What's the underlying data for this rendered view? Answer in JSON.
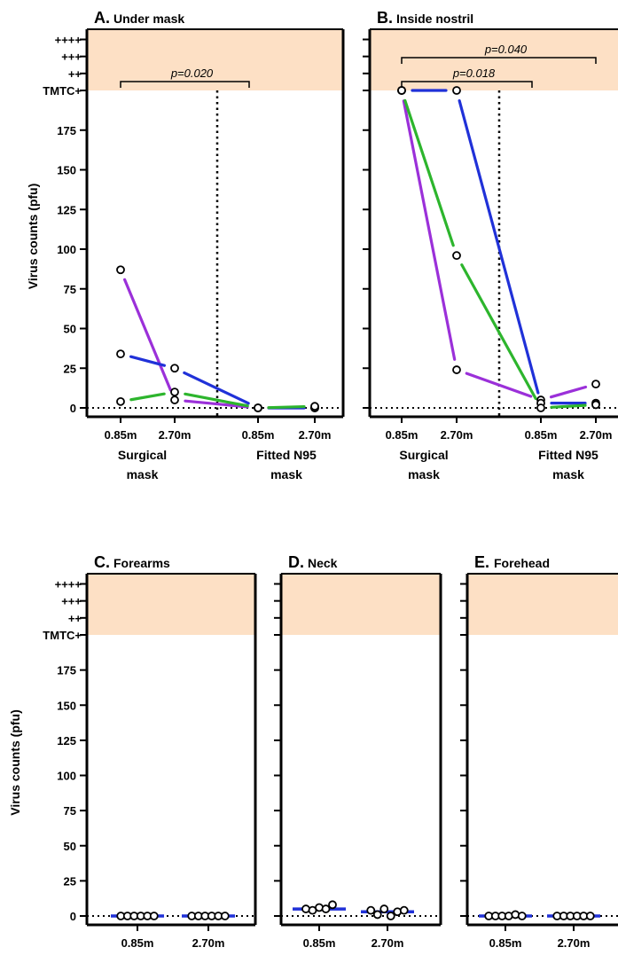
{
  "figure": {
    "shade_color": "#fde0c5",
    "ylabel": "Virus counts (pfu)",
    "y_ticks": [
      0,
      25,
      50,
      75,
      100,
      125,
      150,
      175
    ],
    "y_cat_labels": [
      "TMTC+",
      "++",
      "+++",
      "++++"
    ],
    "series_colors": [
      "#9b30d9",
      "#2031d8",
      "#2db52d"
    ]
  },
  "chart_data": [
    {
      "id": "A",
      "type": "line",
      "letter": "A.",
      "title": "Under mask",
      "x_labels": [
        "0.85m",
        "2.70m",
        "0.85m",
        "2.70m"
      ],
      "groups": [
        {
          "label": [
            "Surgical",
            "mask"
          ],
          "span": [
            0,
            1
          ]
        },
        {
          "label": [
            "Fitted N95",
            "mask"
          ],
          "span": [
            2,
            3
          ]
        }
      ],
      "ylim": [
        0,
        200
      ],
      "points": [
        {
          "x": 0,
          "y": 87
        },
        {
          "x": 0,
          "y": 34
        },
        {
          "x": 0,
          "y": 4
        },
        {
          "x": 1,
          "y": 25
        },
        {
          "x": 1,
          "y": 10
        },
        {
          "x": 1,
          "y": 5
        },
        {
          "x": 2,
          "y": 0
        },
        {
          "x": 2,
          "y": 0
        },
        {
          "x": 2,
          "y": 0
        },
        {
          "x": 3,
          "y": 0
        },
        {
          "x": 3,
          "y": 0
        },
        {
          "x": 3,
          "y": 1
        }
      ],
      "series": [
        {
          "color": "#9b30d9",
          "values": [
            87,
            5,
            0,
            0
          ]
        },
        {
          "color": "#2031d8",
          "values": [
            34,
            25,
            0,
            0
          ]
        },
        {
          "color": "#2db52d",
          "values": [
            4,
            10,
            0,
            1
          ]
        }
      ],
      "divider_between": [
        1,
        2
      ],
      "pvalues": [
        {
          "text": "p=0.020",
          "from": 0,
          "to": 2,
          "level": 0
        }
      ]
    },
    {
      "id": "B",
      "type": "line",
      "letter": "B.",
      "title": "Inside nostril",
      "x_labels": [
        "0.85m",
        "2.70m",
        "0.85m",
        "2.70m"
      ],
      "groups": [
        {
          "label": [
            "Surgical",
            "mask"
          ],
          "span": [
            0,
            1
          ]
        },
        {
          "label": [
            "Fitted N95",
            "mask"
          ],
          "span": [
            2,
            3
          ]
        }
      ],
      "ylim": [
        0,
        200
      ],
      "points": [
        {
          "x": 0,
          "y": "TMTC+"
        },
        {
          "x": 0,
          "y": "TMTC+"
        },
        {
          "x": 0,
          "y": "TMTC+"
        },
        {
          "x": 1,
          "y": "TMTC+"
        },
        {
          "x": 1,
          "y": 96
        },
        {
          "x": 1,
          "y": 24
        },
        {
          "x": 2,
          "y": 5
        },
        {
          "x": 2,
          "y": 3
        },
        {
          "x": 2,
          "y": 0
        },
        {
          "x": 3,
          "y": 15
        },
        {
          "x": 3,
          "y": 3
        },
        {
          "x": 3,
          "y": 2
        }
      ],
      "series": [
        {
          "color": "#9b30d9",
          "values": [
            200,
            24,
            5,
            15
          ]
        },
        {
          "color": "#2031d8",
          "values": [
            200,
            200,
            3,
            3
          ]
        },
        {
          "color": "#2db52d",
          "values": [
            200,
            96,
            0,
            2
          ]
        }
      ],
      "divider_between": [
        1,
        2
      ],
      "pvalues": [
        {
          "text": "p=0.018",
          "from": 0,
          "to": 2,
          "level": 0
        },
        {
          "text": "p=0.040",
          "from": 0,
          "to": 3,
          "level": 1
        }
      ]
    },
    {
      "id": "C",
      "type": "scatter",
      "letter": "C.",
      "title": "Forearms",
      "x_labels": [
        "0.85m",
        "2.70m"
      ],
      "ylim": [
        0,
        200
      ],
      "points": [
        {
          "x": 0,
          "y": 0
        },
        {
          "x": 0,
          "y": 0
        },
        {
          "x": 0,
          "y": 0
        },
        {
          "x": 0,
          "y": 0
        },
        {
          "x": 0,
          "y": 0
        },
        {
          "x": 0,
          "y": 0
        },
        {
          "x": 1,
          "y": 0
        },
        {
          "x": 1,
          "y": 0
        },
        {
          "x": 1,
          "y": 0
        },
        {
          "x": 1,
          "y": 0
        },
        {
          "x": 1,
          "y": 0
        },
        {
          "x": 1,
          "y": 0
        }
      ],
      "medians": [
        0,
        0
      ]
    },
    {
      "id": "D",
      "type": "scatter",
      "letter": "D.",
      "title": "Neck",
      "x_labels": [
        "0.85m",
        "2.70m"
      ],
      "ylim": [
        0,
        200
      ],
      "points": [
        {
          "x": 0,
          "y": 5
        },
        {
          "x": 0,
          "y": 4
        },
        {
          "x": 0,
          "y": 6
        },
        {
          "x": 0,
          "y": 5
        },
        {
          "x": 0,
          "y": 8
        },
        {
          "x": 1,
          "y": 4
        },
        {
          "x": 1,
          "y": 1
        },
        {
          "x": 1,
          "y": 5
        },
        {
          "x": 1,
          "y": 0
        },
        {
          "x": 1,
          "y": 3
        },
        {
          "x": 1,
          "y": 4
        }
      ],
      "medians": [
        5,
        3
      ]
    },
    {
      "id": "E",
      "type": "scatter",
      "letter": "E.",
      "title": "Forehead",
      "x_labels": [
        "0.85m",
        "2.70m"
      ],
      "ylim": [
        0,
        200
      ],
      "points": [
        {
          "x": 0,
          "y": 0
        },
        {
          "x": 0,
          "y": 0
        },
        {
          "x": 0,
          "y": 0
        },
        {
          "x": 0,
          "y": 0
        },
        {
          "x": 0,
          "y": 1
        },
        {
          "x": 0,
          "y": 0
        },
        {
          "x": 1,
          "y": 0
        },
        {
          "x": 1,
          "y": 0
        },
        {
          "x": 1,
          "y": 0
        },
        {
          "x": 1,
          "y": 0
        },
        {
          "x": 1,
          "y": 0
        },
        {
          "x": 1,
          "y": 0
        }
      ],
      "medians": [
        0,
        0
      ]
    }
  ]
}
